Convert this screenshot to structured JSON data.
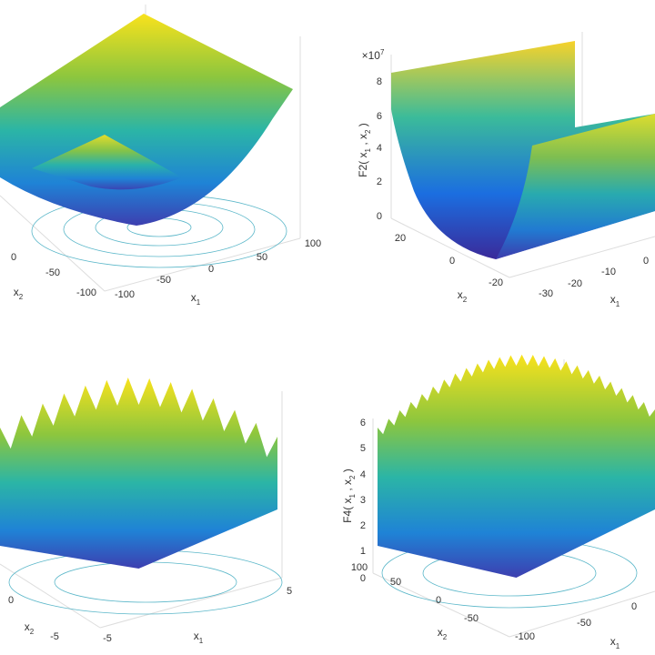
{
  "panels": [
    {
      "x1": {
        "label": [
          "x",
          "1"
        ],
        "ticks": [
          -100,
          -50,
          0,
          50,
          100
        ]
      },
      "x2": {
        "label": [
          "x",
          "2"
        ],
        "ticks": [
          0,
          -50,
          -100
        ]
      }
    },
    {
      "exponent": [
        "×10",
        "7"
      ],
      "z": {
        "label": [
          "F2( x",
          "1",
          " , x",
          "2",
          " )"
        ],
        "ticks": [
          8,
          6,
          4,
          2,
          0
        ]
      },
      "x2": {
        "label": [
          "x",
          "2"
        ],
        "ticks": [
          20,
          0,
          -20
        ]
      },
      "x1": {
        "label": [
          "x",
          "1"
        ],
        "ticks": [
          -30,
          -20,
          -10,
          0
        ]
      }
    },
    {
      "x2": {
        "label": [
          "x",
          "2"
        ],
        "ticks": [
          0,
          -5
        ]
      },
      "x1": {
        "label": [
          "x",
          "1"
        ],
        "ticks": [
          -5,
          5
        ]
      }
    },
    {
      "z": {
        "label": [
          "F4( x",
          "1",
          " , x",
          "2",
          " )"
        ],
        "ticks": [
          6,
          5,
          4,
          3,
          2,
          1,
          0
        ]
      },
      "x2": {
        "label": [
          "x",
          "2"
        ],
        "ticks": [
          100,
          50,
          0,
          -50
        ]
      },
      "x1": {
        "label": [
          "x",
          "1"
        ],
        "ticks": [
          -100,
          -50,
          0
        ]
      }
    }
  ]
}
